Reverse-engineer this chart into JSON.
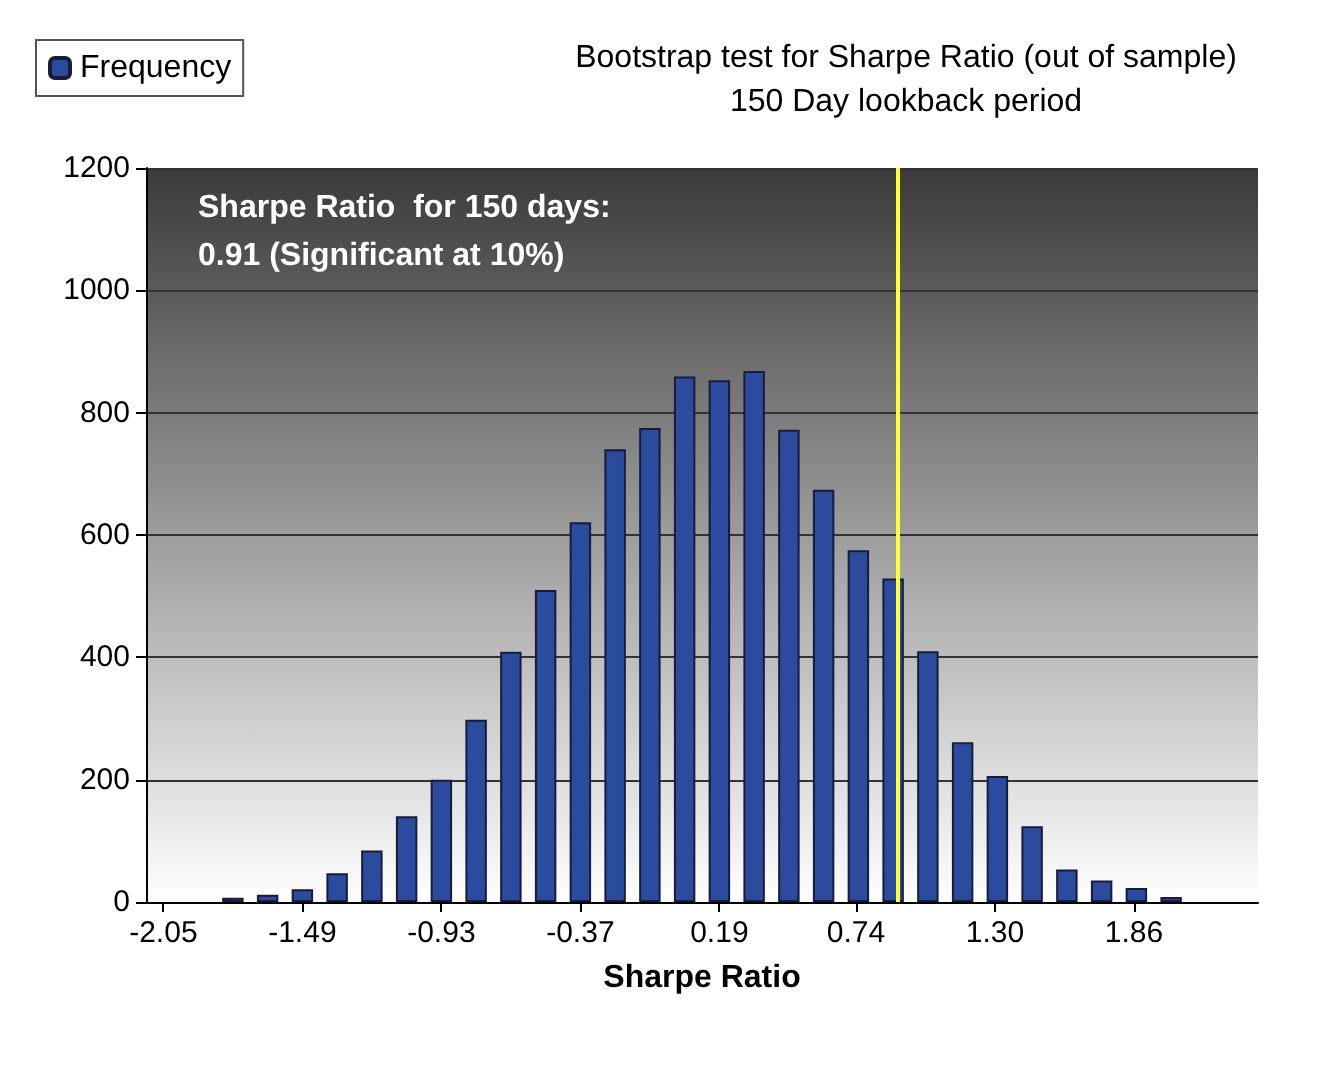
{
  "chart_data": {
    "type": "bar",
    "title": "Bootstrap test for Sharpe Ratio (out of sample)",
    "subtitle": "150 Day lookback period",
    "xlabel": "Sharpe Ratio",
    "x": [
      -1.77,
      -1.63,
      -1.49,
      -1.35,
      -1.21,
      -1.07,
      -0.93,
      -0.79,
      -0.65,
      -0.51,
      -0.37,
      -0.23,
      -0.09,
      0.05,
      0.19,
      0.33,
      0.47,
      0.61,
      0.75,
      0.89,
      1.03,
      1.17,
      1.31,
      1.45,
      1.59,
      1.73,
      1.87,
      2.01
    ],
    "series": [
      {
        "name": "Frequency",
        "color": "#2b4c9e",
        "values": [
          7,
          12,
          21,
          47,
          84,
          140,
          200,
          298,
          409,
          510,
          621,
          740,
          775,
          859,
          853,
          868,
          772,
          674,
          575,
          529,
          410,
          261,
          206,
          124,
          53,
          35,
          23,
          8
        ]
      }
    ],
    "xlim": [
      -2.12,
      2.36
    ],
    "xticks": [
      -2.05,
      -1.49,
      -0.93,
      -0.37,
      0.19,
      0.74,
      {
        "value": 1.3,
        "label": "1.30"
      },
      1.86
    ],
    "ylim": [
      0,
      1200
    ],
    "yticks": [
      0,
      200,
      400,
      600,
      800,
      1000,
      1200
    ],
    "ref_lines": [
      {
        "axis": "x",
        "value": 0.91,
        "color": "#ffff33"
      }
    ],
    "annotations": [
      "Sharpe Ratio  for 150 days:",
      "0.91 (Significant at 10%)"
    ],
    "grid": "y",
    "legend": "top left"
  }
}
